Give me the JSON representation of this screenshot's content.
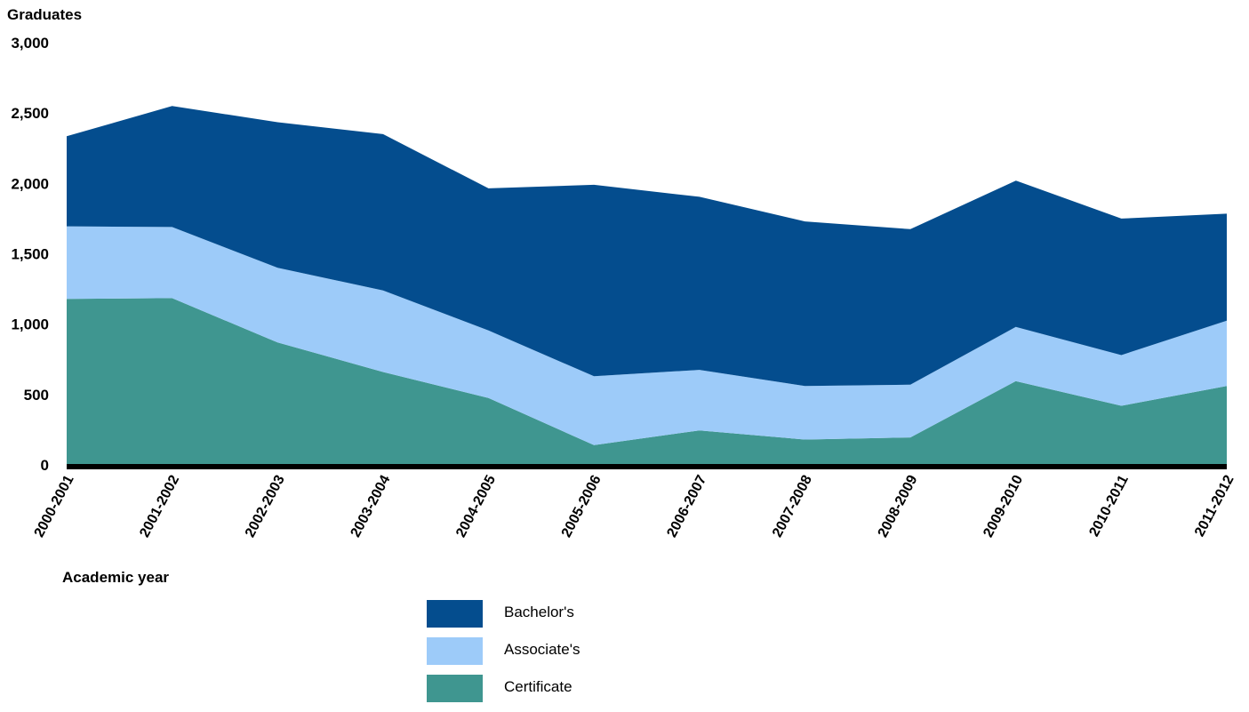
{
  "chart_data": {
    "type": "area",
    "stacked": true,
    "ylabel": "Graduates",
    "xlabel": "Academic year",
    "ylim": [
      0,
      3000
    ],
    "yticks": [
      0,
      500,
      1000,
      1500,
      2000,
      2500,
      3000
    ],
    "ytick_labels": [
      "0",
      "500",
      "1,000",
      "1,500",
      "2,000",
      "2,500",
      "3,000"
    ],
    "categories": [
      "2000-2001",
      "2001-2002",
      "2002-2003",
      "2003-2004",
      "2004-2005",
      "2005-2006",
      "2006-2007",
      "2007-2008",
      "2008-2009",
      "2009-2010",
      "2010-2011",
      "2011-2012"
    ],
    "series": [
      {
        "name": "Certificate",
        "color": "#3f9690",
        "values": [
          1180,
          1185,
          870,
          660,
          475,
          140,
          245,
          180,
          195,
          595,
          420,
          560
        ]
      },
      {
        "name": "Associate's",
        "color": "#9dcbf9",
        "values": [
          515,
          505,
          530,
          580,
          480,
          490,
          430,
          380,
          375,
          385,
          360,
          465
        ]
      },
      {
        "name": "Bachelor's",
        "color": "#044d8e",
        "values": [
          640,
          860,
          1035,
          1110,
          1010,
          1360,
          1230,
          1170,
          1105,
          1040,
          970,
          760
        ]
      }
    ],
    "legend_order": [
      "Bachelor's",
      "Associate's",
      "Certificate"
    ],
    "legend_position": "bottom-center",
    "grid": false
  }
}
